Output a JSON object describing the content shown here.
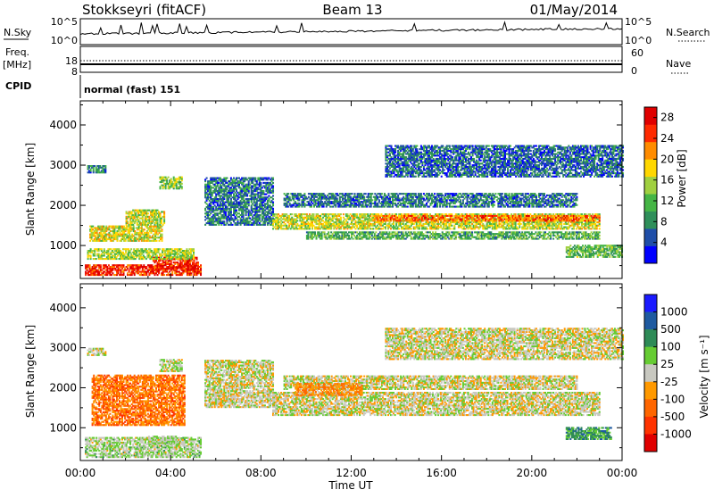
{
  "header": {
    "radar": "Stokkseyri (fitACF)",
    "beam": "Beam 13",
    "date": "01/May/2014"
  },
  "nsky_panel": {
    "left_label": "N.Sky",
    "left_ticks": [
      "10^5",
      "10^0"
    ],
    "right_ticks": [
      "10^5",
      "10^0"
    ],
    "right_label": "N.Search"
  },
  "freq_panel": {
    "left_label_line1": "Freq.",
    "left_label_line2": "[MHz]",
    "left_ticks": [
      "18",
      "8"
    ],
    "right_ticks": [
      "60",
      "0"
    ],
    "right_label": "Nave"
  },
  "cpid": {
    "label": "CPID",
    "text": "normal (fast) 151"
  },
  "x_axis": {
    "label": "Time UT",
    "ticks": [
      "00:00",
      "04:00",
      "08:00",
      "12:00",
      "16:00",
      "20:00",
      "00:00"
    ]
  },
  "power_panel": {
    "ylabel": "Slant Range [km]",
    "yticks": [
      "1000",
      "2000",
      "3000",
      "4000"
    ],
    "colorbar_label": "Power [dB]",
    "colorbar_ticks": [
      "4",
      "8",
      "12",
      "16",
      "20",
      "24",
      "28"
    ]
  },
  "velocity_panel": {
    "ylabel": "Slant Range [km]",
    "yticks": [
      "1000",
      "2000",
      "3000",
      "4000"
    ],
    "colorbar_label": "Velocity [m s⁻¹]",
    "colorbar_ticks": [
      "1000",
      "500",
      "100",
      "25",
      "-25",
      "-100",
      "-500",
      "-1000"
    ]
  },
  "colors": {
    "power_scale": [
      "#0000ff",
      "#1f4ea8",
      "#2f8f5a",
      "#45b545",
      "#a0d040",
      "#ffd700",
      "#ff8c00",
      "#ff2a00",
      "#e00000"
    ],
    "velocity_scale": [
      "#1a1aff",
      "#1e5aa0",
      "#2e8b57",
      "#66cc33",
      "#c8c8c0",
      "#ff9900",
      "#ff6600",
      "#ff3300",
      "#e00000"
    ]
  },
  "chart_data": [
    {
      "type": "heatmap",
      "title": "Power [dB]",
      "xlabel": "Time UT",
      "ylabel": "Slant Range [km]",
      "xlim_hours": [
        0,
        24
      ],
      "ylim": [
        180,
        4600
      ],
      "colorbar_range": [
        0,
        30
      ],
      "regions": [
        {
          "t0": 0.2,
          "t1": 5.3,
          "r0": 250,
          "r1": 500,
          "value": 26
        },
        {
          "t0": 3.2,
          "t1": 5.2,
          "r0": 400,
          "r1": 700,
          "value": 27
        },
        {
          "t0": 0.3,
          "t1": 5.0,
          "r0": 650,
          "r1": 900,
          "value": 15
        },
        {
          "t0": 0.4,
          "t1": 3.6,
          "r0": 1100,
          "r1": 1500,
          "value": 17
        },
        {
          "t0": 2.0,
          "t1": 3.7,
          "r0": 1500,
          "r1": 1900,
          "value": 16
        },
        {
          "t0": 0.3,
          "t1": 1.1,
          "r0": 2800,
          "r1": 3000,
          "value": 8
        },
        {
          "t0": 3.5,
          "t1": 4.5,
          "r0": 2400,
          "r1": 2700,
          "value": 14
        },
        {
          "t0": 5.5,
          "t1": 8.5,
          "r0": 1500,
          "r1": 2700,
          "value": 7
        },
        {
          "t0": 8.5,
          "t1": 23.0,
          "r0": 1400,
          "r1": 1800,
          "value": 16
        },
        {
          "t0": 13.0,
          "t1": 23.0,
          "r0": 1600,
          "r1": 1750,
          "value": 23
        },
        {
          "t0": 10.0,
          "t1": 23.0,
          "r0": 1150,
          "r1": 1350,
          "value": 11
        },
        {
          "t0": 9.0,
          "t1": 22.0,
          "r0": 1950,
          "r1": 2300,
          "value": 7
        },
        {
          "t0": 13.5,
          "t1": 24.0,
          "r0": 2700,
          "r1": 3500,
          "value": 6
        },
        {
          "t0": 21.5,
          "t1": 24.0,
          "r0": 700,
          "r1": 1000,
          "value": 12
        }
      ]
    },
    {
      "type": "heatmap",
      "title": "Velocity [m s⁻¹]",
      "xlabel": "Time UT",
      "ylabel": "Slant Range [km]",
      "xlim_hours": [
        0,
        24
      ],
      "ylim": [
        180,
        4600
      ],
      "colorbar_range": [
        -1000,
        1000
      ],
      "regions": [
        {
          "t0": 0.2,
          "t1": 5.3,
          "r0": 250,
          "r1": 750,
          "value": 110
        },
        {
          "t0": 3.0,
          "t1": 4.5,
          "r0": 600,
          "r1": 800,
          "value": 80
        },
        {
          "t0": 0.5,
          "t1": 4.6,
          "r0": 1050,
          "r1": 2300,
          "value": -400
        },
        {
          "t0": 0.3,
          "t1": 1.1,
          "r0": 2800,
          "r1": 3000,
          "value": 0
        },
        {
          "t0": 3.5,
          "t1": 4.5,
          "r0": 2400,
          "r1": 2700,
          "value": 60
        },
        {
          "t0": 5.5,
          "t1": 8.5,
          "r0": 1500,
          "r1": 2700,
          "value": 0
        },
        {
          "t0": 8.5,
          "t1": 23.0,
          "r0": 1300,
          "r1": 1900,
          "value": 0
        },
        {
          "t0": 9.0,
          "t1": 22.0,
          "r0": 1950,
          "r1": 2300,
          "value": 0
        },
        {
          "t0": 9.5,
          "t1": 12.5,
          "r0": 1800,
          "r1": 2100,
          "value": -300
        },
        {
          "t0": 13.5,
          "t1": 24.0,
          "r0": 2700,
          "r1": 3500,
          "value": 0
        },
        {
          "t0": 21.5,
          "t1": 23.5,
          "r0": 700,
          "r1": 1000,
          "value": 400
        }
      ]
    }
  ]
}
